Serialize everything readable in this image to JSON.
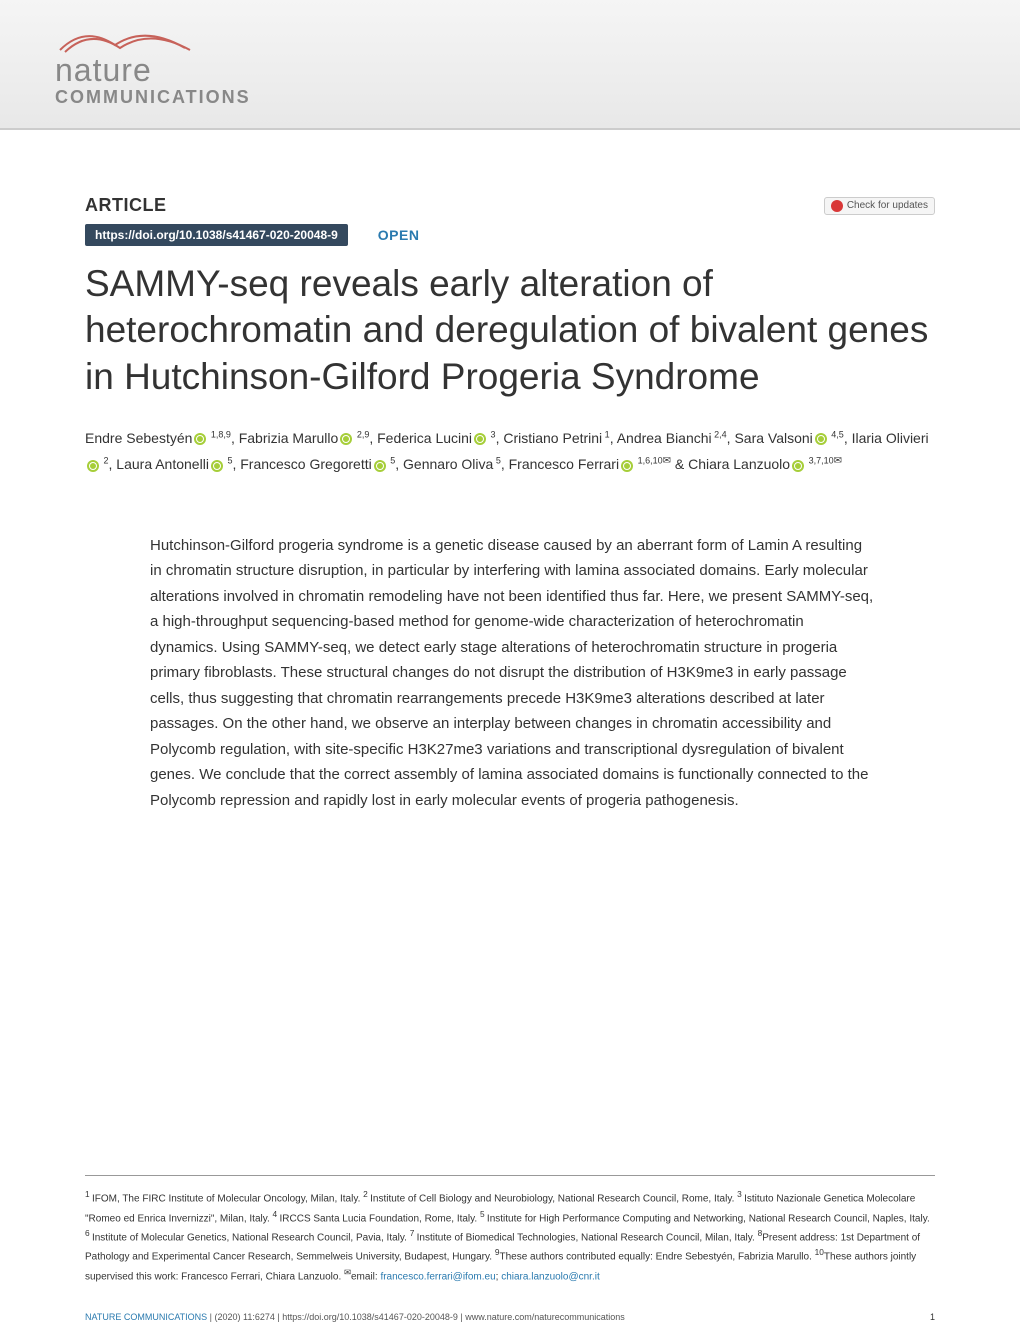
{
  "journal": {
    "name": "nature",
    "subtitle": "COMMUNICATIONS",
    "swoosh_color": "#c7625a",
    "text_color": "#888888"
  },
  "header": {
    "article_label": "ARTICLE",
    "check_updates": "Check for updates",
    "check_icon_color": "#d93838"
  },
  "doi": {
    "url": "https://doi.org/10.1038/s41467-020-20048-9",
    "badge_bg": "#34495e",
    "open_label": "OPEN",
    "open_color": "#2a7aaf"
  },
  "title": "SAMMY-seq reveals early alteration of heterochromatin and deregulation of bivalent genes in Hutchinson-Gilford Progeria Syndrome",
  "authors": [
    {
      "name": "Endre Sebestyén",
      "orcid": true,
      "affils": "1,8,9"
    },
    {
      "name": "Fabrizia Marullo",
      "orcid": true,
      "affils": "2,9"
    },
    {
      "name": "Federica Lucini",
      "orcid": true,
      "affils": "3"
    },
    {
      "name": "Cristiano Petrini",
      "orcid": false,
      "affils": "1"
    },
    {
      "name": "Andrea Bianchi",
      "orcid": false,
      "affils": "2,4"
    },
    {
      "name": "Sara Valsoni",
      "orcid": true,
      "affils": "4,5"
    },
    {
      "name": "Ilaria Olivieri",
      "orcid": true,
      "affils": "2"
    },
    {
      "name": "Laura Antonelli",
      "orcid": true,
      "affils": "5"
    },
    {
      "name": "Francesco Gregoretti",
      "orcid": true,
      "affils": "5"
    },
    {
      "name": "Gennaro Oliva",
      "orcid": false,
      "affils": "5"
    },
    {
      "name": "Francesco Ferrari",
      "orcid": true,
      "affils": "1,6,10",
      "mail": true
    },
    {
      "name": "Chiara Lanzuolo",
      "orcid": true,
      "affils": "3,7,10",
      "mail": true,
      "last": true
    }
  ],
  "abstract": "Hutchinson-Gilford progeria syndrome is a genetic disease caused by an aberrant form of Lamin A resulting in chromatin structure disruption, in particular by interfering with lamina associated domains. Early molecular alterations involved in chromatin remodeling have not been identified thus far. Here, we present SAMMY-seq, a high-throughput sequencing-based method for genome-wide characterization of heterochromatin dynamics. Using SAMMY-seq, we detect early stage alterations of heterochromatin structure in progeria primary fibroblasts. These structural changes do not disrupt the distribution of H3K9me3 in early passage cells, thus suggesting that chromatin rearrangements precede H3K9me3 alterations described at later passages. On the other hand, we observe an interplay between changes in chromatin accessibility and Polycomb regulation, with site-specific H3K27me3 variations and transcriptional dysregulation of bivalent genes. We conclude that the correct assembly of lamina associated domains is functionally connected to the Polycomb repression and rapidly lost in early molecular events of progeria pathogenesis.",
  "affiliations_text_parts": {
    "a1": "IFOM, The FIRC Institute of Molecular Oncology, Milan, Italy. ",
    "a2": "Institute of Cell Biology and Neurobiology, National Research Council, Rome, Italy. ",
    "a3": "Istituto Nazionale Genetica Molecolare \"Romeo ed Enrica Invernizzi\", Milan, Italy. ",
    "a4": "IRCCS Santa Lucia Foundation, Rome, Italy. ",
    "a5": "Institute for High Performance Computing and Networking, National Research Council, Naples, Italy. ",
    "a6": "Institute of Molecular Genetics, National Research Council, Pavia, Italy. ",
    "a7": "Institute of Biomedical Technologies, National Research Council, Milan, Italy. ",
    "a8": "Present address: 1st Department of Pathology and Experimental Cancer Research, Semmelweis University, Budapest, Hungary. ",
    "a9": "These authors contributed equally: Endre Sebestyén, Fabrizia Marullo. ",
    "a10": "These authors jointly supervised this work: Francesco Ferrari, Chiara Lanzuolo. ",
    "email_prefix": "email: ",
    "email1": "francesco.ferrari@ifom.eu",
    "email_sep": "; ",
    "email2": "chiara.lanzuolo@cnr.it"
  },
  "footer": {
    "journal": "NATURE COMMUNICATIONS",
    "citation": " |         (2020) 11:6274 | https://doi.org/10.1038/s41467-020-20048-9 | www.nature.com/naturecommunications",
    "page": "1"
  },
  "colors": {
    "text_primary": "#333333",
    "link_blue": "#2a7aaf",
    "orcid_green": "#a6ce39",
    "background": "#ffffff"
  },
  "typography": {
    "title_fontsize": 37,
    "title_weight": 300,
    "abstract_fontsize": 15,
    "authors_fontsize": 14,
    "affiliations_fontsize": 10,
    "footer_fontsize": 9
  }
}
